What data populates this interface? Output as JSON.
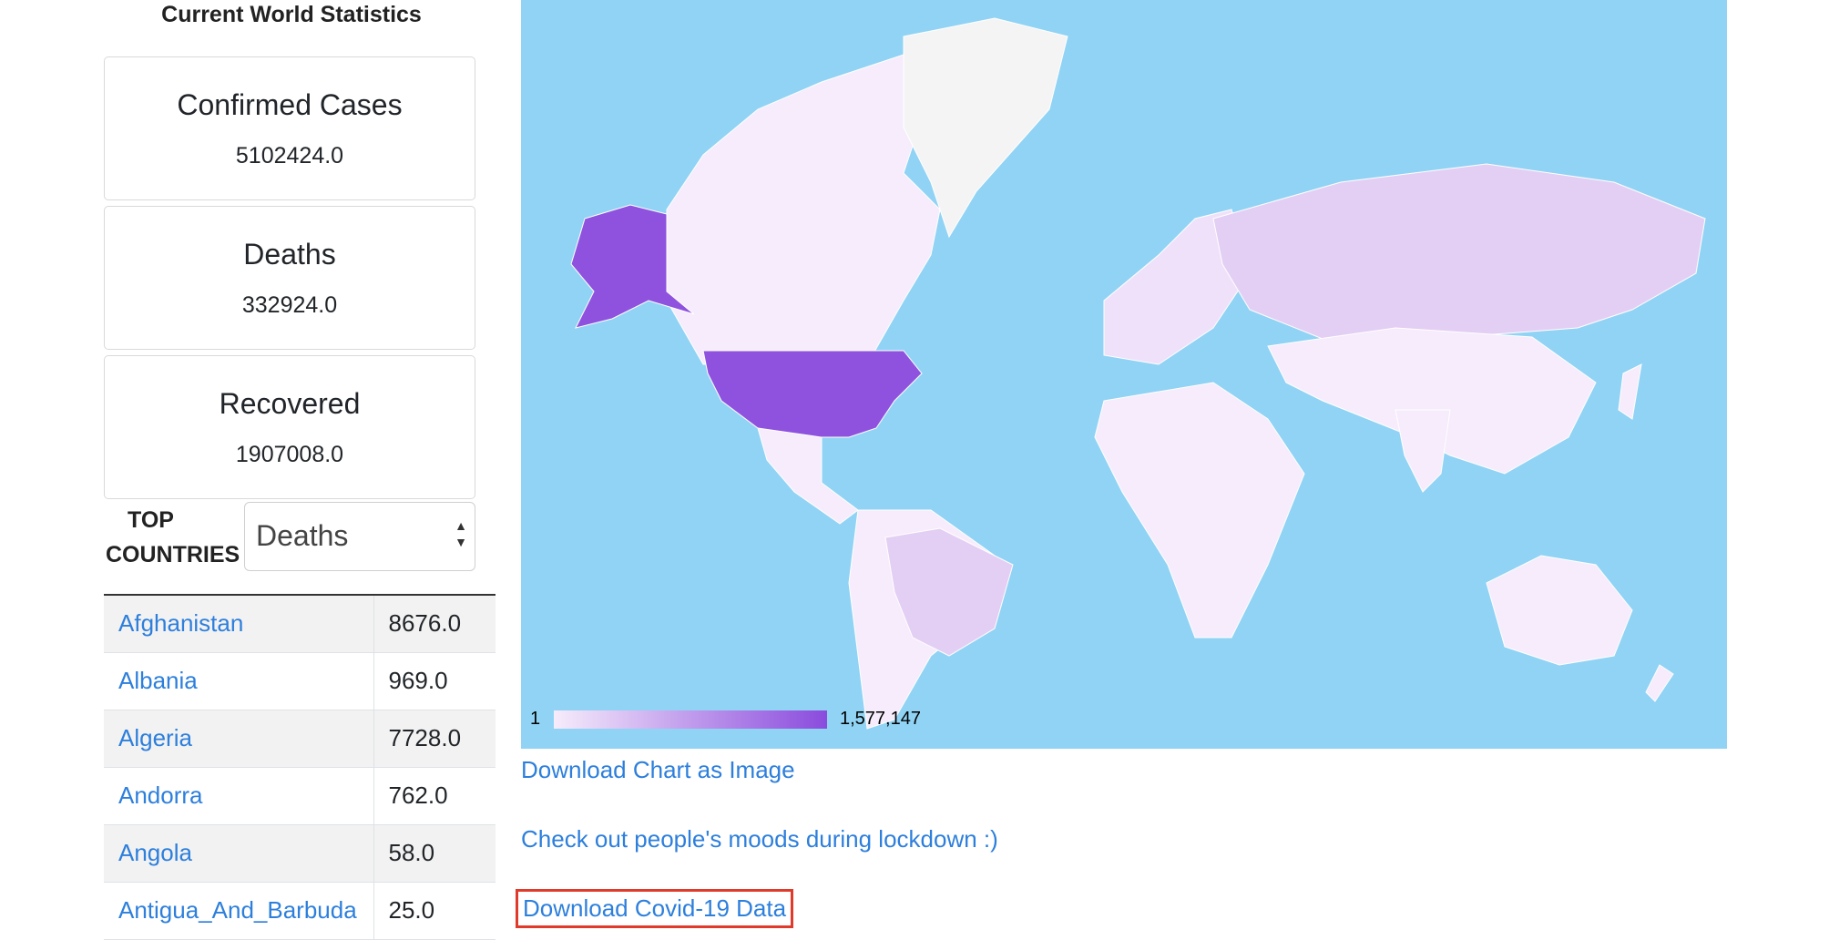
{
  "stats": {
    "title": "Current World Statistics",
    "cards": [
      {
        "label": "Confirmed Cases",
        "value": "5102424.0"
      },
      {
        "label": "Deaths",
        "value": "332924.0"
      },
      {
        "label": "Recovered",
        "value": "1907008.0"
      }
    ]
  },
  "top_countries": {
    "label_line1": "TOP",
    "label_line2": "COUNTRIES",
    "select_value": "Deaths",
    "rows": [
      {
        "name": "Afghanistan",
        "value": "8676.0"
      },
      {
        "name": "Albania",
        "value": "969.0"
      },
      {
        "name": "Algeria",
        "value": "7728.0"
      },
      {
        "name": "Andorra",
        "value": "762.0"
      },
      {
        "name": "Angola",
        "value": "58.0"
      },
      {
        "name": "Antigua_And_Barbuda",
        "value": "25.0"
      }
    ]
  },
  "map": {
    "legend_min": "1",
    "legend_max": "1,577,147",
    "colors": {
      "ocean": "#91d3f4",
      "low": "#f6ecfb",
      "high": "#8a4bdd",
      "mid": "#e4cff4",
      "greenland": "#f4f4f4"
    }
  },
  "links": {
    "download_chart": "Download Chart as Image",
    "moods": "Check out people's moods during lockdown :)",
    "download_data": "Download Covid-19 Data"
  }
}
